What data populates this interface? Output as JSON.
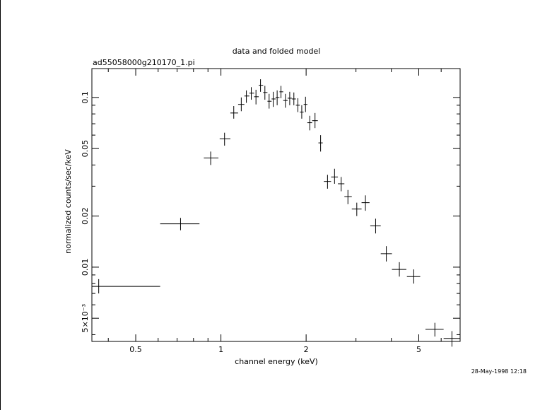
{
  "chart_data": {
    "type": "scatter",
    "title": "data and folded model",
    "subtitle": "ad55058000g210170_1.pi",
    "xlabel": "channel energy (keV)",
    "ylabel": "normalized counts/sec/keV",
    "timestamp": "28-May-1998 12:18",
    "x_scale": "log",
    "y_scale": "log",
    "xlim": [
      0.35,
      7.0
    ],
    "ylim": [
      0.00365,
      0.148
    ],
    "x_ticks": [
      {
        "value": 0.5,
        "label": "0.5"
      },
      {
        "value": 1,
        "label": "1"
      },
      {
        "value": 2,
        "label": "2"
      },
      {
        "value": 5,
        "label": "5"
      }
    ],
    "y_ticks": [
      {
        "value": 0.005,
        "label": "5×10⁻³"
      },
      {
        "value": 0.01,
        "label": "0.01"
      },
      {
        "value": 0.02,
        "label": "0.02"
      },
      {
        "value": 0.05,
        "label": "0.05"
      },
      {
        "value": 0.1,
        "label": "0.1"
      }
    ],
    "grid": false,
    "series": [
      {
        "points": [
          {
            "x": 0.37,
            "xlo": 0.35,
            "xhi": 0.61,
            "y": 0.0077,
            "ylo": 0.007,
            "yhi": 0.0085
          },
          {
            "x": 0.72,
            "xlo": 0.61,
            "xhi": 0.84,
            "y": 0.018,
            "ylo": 0.0165,
            "yhi": 0.0195
          },
          {
            "x": 0.92,
            "xlo": 0.87,
            "xhi": 0.98,
            "y": 0.044,
            "ylo": 0.04,
            "yhi": 0.048
          },
          {
            "x": 1.03,
            "xlo": 0.99,
            "xhi": 1.08,
            "y": 0.057,
            "ylo": 0.052,
            "yhi": 0.062
          },
          {
            "x": 1.11,
            "xlo": 1.08,
            "xhi": 1.15,
            "y": 0.081,
            "ylo": 0.075,
            "yhi": 0.089
          },
          {
            "x": 1.18,
            "xlo": 1.15,
            "xhi": 1.21,
            "y": 0.091,
            "ylo": 0.083,
            "yhi": 0.1
          },
          {
            "x": 1.23,
            "xlo": 1.21,
            "xhi": 1.26,
            "y": 0.102,
            "ylo": 0.093,
            "yhi": 0.11
          },
          {
            "x": 1.28,
            "xlo": 1.26,
            "xhi": 1.31,
            "y": 0.106,
            "ylo": 0.097,
            "yhi": 0.115
          },
          {
            "x": 1.33,
            "xlo": 1.31,
            "xhi": 1.36,
            "y": 0.101,
            "ylo": 0.091,
            "yhi": 0.111
          },
          {
            "x": 1.38,
            "xlo": 1.36,
            "xhi": 1.41,
            "y": 0.118,
            "ylo": 0.108,
            "yhi": 0.128
          },
          {
            "x": 1.43,
            "xlo": 1.41,
            "xhi": 1.46,
            "y": 0.107,
            "ylo": 0.097,
            "yhi": 0.117
          },
          {
            "x": 1.48,
            "xlo": 1.46,
            "xhi": 1.51,
            "y": 0.095,
            "ylo": 0.086,
            "yhi": 0.105
          },
          {
            "x": 1.53,
            "xlo": 1.51,
            "xhi": 1.56,
            "y": 0.098,
            "ylo": 0.088,
            "yhi": 0.108
          },
          {
            "x": 1.58,
            "xlo": 1.56,
            "xhi": 1.61,
            "y": 0.1,
            "ylo": 0.09,
            "yhi": 0.11
          },
          {
            "x": 1.63,
            "xlo": 1.61,
            "xhi": 1.66,
            "y": 0.108,
            "ylo": 0.099,
            "yhi": 0.117
          },
          {
            "x": 1.69,
            "xlo": 1.66,
            "xhi": 1.72,
            "y": 0.096,
            "ylo": 0.087,
            "yhi": 0.105
          },
          {
            "x": 1.75,
            "xlo": 1.72,
            "xhi": 1.78,
            "y": 0.099,
            "ylo": 0.09,
            "yhi": 0.108
          },
          {
            "x": 1.81,
            "xlo": 1.78,
            "xhi": 1.84,
            "y": 0.098,
            "ylo": 0.09,
            "yhi": 0.107
          },
          {
            "x": 1.87,
            "xlo": 1.84,
            "xhi": 1.9,
            "y": 0.09,
            "ylo": 0.082,
            "yhi": 0.099
          },
          {
            "x": 1.93,
            "xlo": 1.9,
            "xhi": 1.96,
            "y": 0.082,
            "ylo": 0.075,
            "yhi": 0.09
          },
          {
            "x": 1.99,
            "xlo": 1.96,
            "xhi": 2.02,
            "y": 0.091,
            "ylo": 0.082,
            "yhi": 0.101
          },
          {
            "x": 2.06,
            "xlo": 2.02,
            "xhi": 2.1,
            "y": 0.071,
            "ylo": 0.064,
            "yhi": 0.078
          },
          {
            "x": 2.15,
            "xlo": 2.1,
            "xhi": 2.2,
            "y": 0.073,
            "ylo": 0.066,
            "yhi": 0.081
          },
          {
            "x": 2.25,
            "xlo": 2.21,
            "xhi": 2.29,
            "y": 0.054,
            "ylo": 0.048,
            "yhi": 0.06
          },
          {
            "x": 2.38,
            "xlo": 2.31,
            "xhi": 2.45,
            "y": 0.032,
            "ylo": 0.029,
            "yhi": 0.035
          },
          {
            "x": 2.52,
            "xlo": 2.45,
            "xhi": 2.59,
            "y": 0.034,
            "ylo": 0.031,
            "yhi": 0.038
          },
          {
            "x": 2.66,
            "xlo": 2.59,
            "xhi": 2.73,
            "y": 0.031,
            "ylo": 0.028,
            "yhi": 0.034
          },
          {
            "x": 2.81,
            "xlo": 2.73,
            "xhi": 2.9,
            "y": 0.026,
            "ylo": 0.0235,
            "yhi": 0.0285
          },
          {
            "x": 3.02,
            "xlo": 2.9,
            "xhi": 3.14,
            "y": 0.022,
            "ylo": 0.02,
            "yhi": 0.024
          },
          {
            "x": 3.24,
            "xlo": 3.14,
            "xhi": 3.35,
            "y": 0.024,
            "ylo": 0.0215,
            "yhi": 0.0265
          },
          {
            "x": 3.52,
            "xlo": 3.37,
            "xhi": 3.67,
            "y": 0.0175,
            "ylo": 0.0158,
            "yhi": 0.0193
          },
          {
            "x": 3.84,
            "xlo": 3.67,
            "xhi": 4.02,
            "y": 0.012,
            "ylo": 0.0108,
            "yhi": 0.0133
          },
          {
            "x": 4.27,
            "xlo": 4.02,
            "xhi": 4.52,
            "y": 0.0097,
            "ylo": 0.0088,
            "yhi": 0.0107
          },
          {
            "x": 4.8,
            "xlo": 4.54,
            "xhi": 5.06,
            "y": 0.0088,
            "ylo": 0.008,
            "yhi": 0.0097
          },
          {
            "x": 5.7,
            "xlo": 5.28,
            "xhi": 6.12,
            "y": 0.0043,
            "ylo": 0.0039,
            "yhi": 0.0047
          },
          {
            "x": 6.55,
            "xlo": 6.12,
            "xhi": 7.0,
            "y": 0.0038,
            "ylo": 0.0034,
            "yhi": 0.0042
          }
        ]
      }
    ]
  }
}
